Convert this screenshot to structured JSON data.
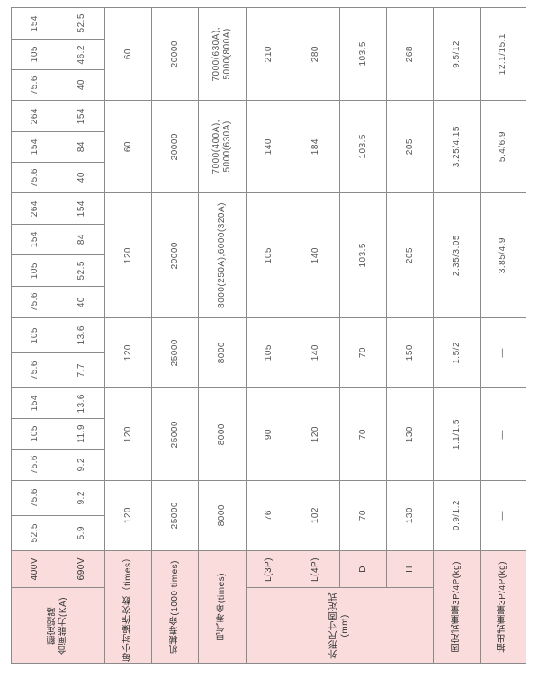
{
  "header": {
    "v400": "400V",
    "v690": "690V",
    "breaking": "额定短路\n合闸能力(KA)",
    "ops_per_hour": "每小时操作次数（times）",
    "mech_life": "机械寿命(1000 times)",
    "elec_life": "电气寿命(times)",
    "l3p": "L(3P)",
    "l4p": "L(4P)",
    "d": "D",
    "h": "H",
    "dimensions": "外形尺寸固定式\n(mm)",
    "fixed_weight": "固定式重量3P/4P(kg)",
    "drawout_weight": "抽出式重量3P/4P(kg)"
  },
  "groups": [
    {
      "v400": [
        "52.5",
        "75.6"
      ],
      "v690": [
        "5.9",
        "9.2"
      ],
      "ops": "120",
      "mech": "25000",
      "elec": "8000",
      "l3p": "76",
      "l4p": "102",
      "d": "70",
      "h": "130",
      "fixed": "0.9/1.2",
      "drawout": "—"
    },
    {
      "v400": [
        "75.6",
        "105",
        "154"
      ],
      "v690": [
        "9.2",
        "11.9",
        "13.6"
      ],
      "ops": "120",
      "mech": "25000",
      "elec": "8000",
      "l3p": "90",
      "l4p": "120",
      "d": "70",
      "h": "130",
      "fixed": "1.1/1.5",
      "drawout": "—"
    },
    {
      "v400": [
        "75.6",
        "105"
      ],
      "v690": [
        "7.7",
        "13.6"
      ],
      "ops": "120",
      "mech": "25000",
      "elec": "8000",
      "l3p": "105",
      "l4p": "140",
      "d": "70",
      "h": "150",
      "fixed": "1.5/2",
      "drawout": "—"
    },
    {
      "v400": [
        "75.6",
        "105",
        "154",
        "264"
      ],
      "v690": [
        "40",
        "52.5",
        "84",
        "154"
      ],
      "ops": "120",
      "mech": "20000",
      "elec": "8000(250A),6000(320A)",
      "l3p": "105",
      "l4p": "140",
      "d": "103.5",
      "h": "205",
      "fixed": "2.35/3.05",
      "drawout": "3.85/4.9"
    },
    {
      "v400": [
        "75.6",
        "154",
        "264"
      ],
      "v690": [
        "40",
        "84",
        "154"
      ],
      "ops": "60",
      "mech": "20000",
      "elec": "7000(400A),\n5000(630A)",
      "l3p": "140",
      "l4p": "184",
      "d": "103.5",
      "h": "205",
      "fixed": "3.25/4.15",
      "drawout": "5.4/6.9"
    },
    {
      "v400": [
        "75.6",
        "105",
        "154"
      ],
      "v690": [
        "40",
        "46.2",
        "52.5"
      ],
      "ops": "60",
      "mech": "20000",
      "elec": "7000(630A),\n5000(800A)",
      "l3p": "210",
      "l4p": "280",
      "d": "103.5",
      "h": "268",
      "fixed": "9.5/12",
      "drawout": "12.1/15.1"
    }
  ],
  "colors": {
    "header_bg": "#fadcdc",
    "border": "#8a8a8a",
    "text": "#555555"
  }
}
